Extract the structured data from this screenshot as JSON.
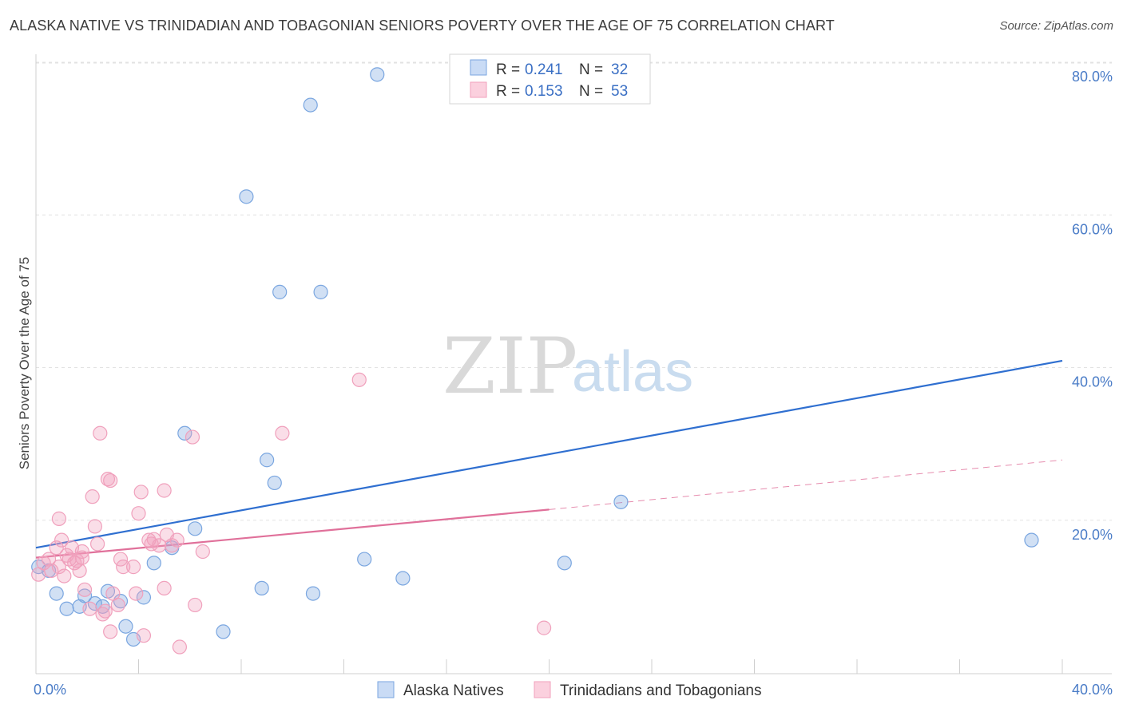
{
  "header": {
    "title": "ALASKA NATIVE VS TRINIDADIAN AND TOBAGONIAN SENIORS POVERTY OVER THE AGE OF 75 CORRELATION CHART",
    "source": "Source: ZipAtlas.com"
  },
  "watermark": {
    "zip": "ZIP",
    "atlas": "atlas"
  },
  "legend_top": {
    "rows": [
      {
        "r_label": "R =",
        "r_value": "0.241",
        "n_label": "N =",
        "n_value": "32"
      },
      {
        "r_label": "R =",
        "r_value": "0.153",
        "n_label": "N =",
        "n_value": "53"
      }
    ]
  },
  "chart_data": {
    "type": "scatter",
    "title": "ALASKA NATIVE VS TRINIDADIAN AND TOBAGONIAN SENIORS POVERTY OVER THE AGE OF 75 CORRELATION CHART",
    "xlabel": "",
    "ylabel": "Seniors Poverty Over the Age of 75",
    "xlim": [
      0,
      40
    ],
    "ylim": [
      0,
      80
    ],
    "x_tick_labels": [
      "0.0%",
      "40.0%"
    ],
    "y_tick_values": [
      20,
      40,
      60,
      80
    ],
    "y_tick_labels": [
      "20.0%",
      "40.0%",
      "60.0%",
      "80.0%"
    ],
    "grid": true,
    "legend_position": "bottom",
    "colors": {
      "alaska": "#7aa6e0",
      "alaska_line": "#2f6fd0",
      "trini": "#f0a0bc",
      "trini_line": "#e0709a"
    },
    "series": [
      {
        "name": "Alaska Natives",
        "key": "alaska",
        "r": 0.241,
        "n": 32,
        "trend": {
          "x0": 0,
          "y0": 16.5,
          "x1": 40,
          "y1": 41
        },
        "points": [
          [
            0.1,
            14.0
          ],
          [
            0.5,
            13.5
          ],
          [
            0.8,
            10.5
          ],
          [
            1.2,
            8.5
          ],
          [
            1.7,
            8.8
          ],
          [
            1.9,
            10.2
          ],
          [
            2.3,
            9.2
          ],
          [
            2.6,
            8.8
          ],
          [
            2.8,
            10.8
          ],
          [
            3.3,
            9.5
          ],
          [
            3.5,
            6.2
          ],
          [
            3.8,
            4.5
          ],
          [
            4.2,
            10.0
          ],
          [
            4.6,
            14.5
          ],
          [
            5.3,
            16.5
          ],
          [
            5.8,
            31.5
          ],
          [
            6.2,
            19.0
          ],
          [
            7.3,
            5.5
          ],
          [
            8.2,
            62.5
          ],
          [
            8.8,
            11.2
          ],
          [
            9.0,
            28.0
          ],
          [
            9.3,
            25.0
          ],
          [
            9.5,
            50.0
          ],
          [
            10.7,
            74.5
          ],
          [
            10.8,
            10.5
          ],
          [
            11.1,
            50.0
          ],
          [
            12.8,
            15.0
          ],
          [
            13.3,
            78.5
          ],
          [
            14.3,
            12.5
          ],
          [
            20.6,
            14.5
          ],
          [
            22.8,
            22.5
          ],
          [
            38.8,
            17.5
          ]
        ]
      },
      {
        "name": "Trinidadians and Tobagonians",
        "key": "trini",
        "r": 0.153,
        "n": 53,
        "trend": {
          "x0": 0,
          "y0": 15.2,
          "x1": 20,
          "y1": 21.5
        },
        "trend_extension": {
          "x0": 20,
          "y0": 21.5,
          "x1": 40,
          "y1": 28
        },
        "points": [
          [
            0.1,
            13.0
          ],
          [
            0.3,
            14.5
          ],
          [
            0.5,
            15.0
          ],
          [
            0.6,
            13.5
          ],
          [
            0.8,
            16.5
          ],
          [
            0.9,
            14.0
          ],
          [
            0.9,
            20.3
          ],
          [
            1.0,
            17.5
          ],
          [
            1.1,
            12.8
          ],
          [
            1.2,
            15.5
          ],
          [
            1.3,
            15.0
          ],
          [
            1.4,
            16.5
          ],
          [
            1.5,
            14.5
          ],
          [
            1.6,
            14.8
          ],
          [
            1.7,
            13.5
          ],
          [
            1.8,
            16.0
          ],
          [
            1.8,
            15.2
          ],
          [
            1.9,
            11.0
          ],
          [
            2.1,
            8.5
          ],
          [
            2.2,
            23.2
          ],
          [
            2.3,
            19.3
          ],
          [
            2.4,
            17.0
          ],
          [
            2.5,
            31.5
          ],
          [
            2.6,
            7.8
          ],
          [
            2.7,
            8.2
          ],
          [
            2.8,
            25.5
          ],
          [
            2.9,
            5.5
          ],
          [
            2.9,
            25.3
          ],
          [
            3.0,
            10.5
          ],
          [
            3.2,
            9.0
          ],
          [
            3.3,
            15.0
          ],
          [
            3.4,
            14.0
          ],
          [
            3.8,
            14.0
          ],
          [
            3.9,
            10.5
          ],
          [
            4.0,
            21.0
          ],
          [
            4.1,
            23.8
          ],
          [
            4.2,
            5.0
          ],
          [
            4.4,
            17.5
          ],
          [
            4.5,
            17.0
          ],
          [
            4.6,
            17.6
          ],
          [
            4.8,
            16.8
          ],
          [
            5.0,
            11.2
          ],
          [
            5.0,
            24.0
          ],
          [
            5.1,
            18.2
          ],
          [
            5.3,
            16.8
          ],
          [
            5.5,
            17.5
          ],
          [
            5.6,
            3.5
          ],
          [
            6.1,
            31.0
          ],
          [
            6.2,
            9.0
          ],
          [
            6.5,
            16.0
          ],
          [
            9.6,
            31.5
          ],
          [
            12.6,
            38.5
          ],
          [
            19.8,
            6.0
          ]
        ]
      }
    ]
  }
}
